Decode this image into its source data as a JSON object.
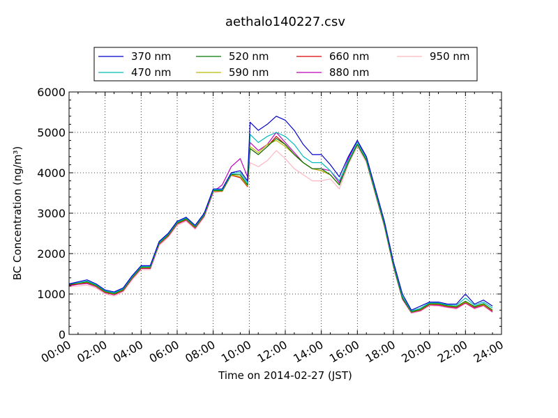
{
  "chart_data": {
    "type": "line",
    "title": "aethalo140227.csv",
    "xlabel": "Time on 2014-02-27 (JST)",
    "ylabel": "BC Concentration (ng/m³)",
    "xlim": [
      0,
      24
    ],
    "ylim": [
      0,
      6000
    ],
    "x_ticks": [
      "00:00",
      "02:00",
      "04:00",
      "06:00",
      "08:00",
      "10:00",
      "12:00",
      "14:00",
      "16:00",
      "18:00",
      "20:00",
      "22:00",
      "24:00"
    ],
    "y_ticks": [
      "0",
      "1000",
      "2000",
      "3000",
      "4000",
      "5000",
      "6000"
    ],
    "grid": true,
    "legend_position": "top",
    "x_unit": "hours",
    "x": [
      0,
      0.5,
      1,
      1.5,
      2,
      2.5,
      3,
      3.5,
      4,
      4.5,
      5,
      5.5,
      6,
      6.5,
      7,
      7.5,
      8,
      8.5,
      9,
      9.5,
      9.9,
      10.05,
      10.5,
      11,
      11.5,
      12,
      12.5,
      13,
      13.5,
      14,
      14.5,
      15,
      15.5,
      16,
      16.5,
      17,
      17.5,
      18,
      18.5,
      19,
      19.5,
      20,
      20.5,
      21,
      21.5,
      22,
      22.5,
      23,
      23.5
    ],
    "series": [
      {
        "name": "370 nm",
        "color": "#0000cc",
        "values": [
          1250,
          1300,
          1350,
          1250,
          1100,
          1050,
          1150,
          1450,
          1700,
          1700,
          2300,
          2500,
          2800,
          2900,
          2700,
          3000,
          3600,
          3600,
          4000,
          4050,
          3800,
          5250,
          5050,
          5200,
          5400,
          5300,
          5050,
          4700,
          4450,
          4450,
          4200,
          3900,
          4400,
          4800,
          4400,
          3600,
          2800,
          1800,
          1000,
          600,
          700,
          800,
          800,
          750,
          750,
          1000,
          750,
          850,
          700
        ]
      },
      {
        "name": "470 nm",
        "color": "#00bbbb",
        "values": [
          1250,
          1280,
          1320,
          1230,
          1080,
          1030,
          1130,
          1430,
          1680,
          1680,
          2280,
          2480,
          2780,
          2880,
          2680,
          2980,
          3580,
          3580,
          3980,
          4000,
          3750,
          4950,
          4750,
          4900,
          5000,
          4900,
          4700,
          4400,
          4250,
          4250,
          4050,
          3800,
          4300,
          4750,
          4350,
          3550,
          2750,
          1750,
          950,
          580,
          650,
          780,
          780,
          730,
          720,
          900,
          720,
          800,
          650
        ]
      },
      {
        "name": "520 nm",
        "color": "#007700",
        "values": [
          1230,
          1270,
          1300,
          1210,
          1060,
          1010,
          1110,
          1410,
          1660,
          1660,
          2260,
          2460,
          2760,
          2860,
          2660,
          2960,
          3560,
          3560,
          3960,
          3950,
          3700,
          4600,
          4450,
          4650,
          4850,
          4700,
          4450,
          4250,
          4100,
          4100,
          3950,
          3700,
          4250,
          4700,
          4300,
          3500,
          2700,
          1700,
          900,
          560,
          620,
          760,
          760,
          710,
          690,
          820,
          690,
          760,
          600
        ]
      },
      {
        "name": "590 nm",
        "color": "#bbbb00",
        "values": [
          1240,
          1260,
          1290,
          1200,
          1050,
          1000,
          1100,
          1400,
          1650,
          1650,
          2250,
          2450,
          2750,
          2850,
          2650,
          2950,
          3550,
          3550,
          3950,
          3900,
          3680,
          4650,
          4500,
          4700,
          4800,
          4650,
          4450,
          4250,
          4100,
          4050,
          3950,
          3700,
          4250,
          4700,
          4300,
          3500,
          2700,
          1700,
          900,
          550,
          610,
          750,
          750,
          700,
          680,
          800,
          680,
          740,
          590
        ]
      },
      {
        "name": "660 nm",
        "color": "#dd0000",
        "values": [
          1220,
          1250,
          1280,
          1190,
          1040,
          990,
          1090,
          1390,
          1640,
          1640,
          2240,
          2440,
          2740,
          2840,
          2640,
          2940,
          3540,
          3540,
          3940,
          3880,
          3660,
          4600,
          4450,
          4650,
          4900,
          4700,
          4450,
          4250,
          4100,
          4050,
          3950,
          3700,
          4250,
          4700,
          4300,
          3500,
          2700,
          1700,
          900,
          550,
          600,
          740,
          740,
          690,
          670,
          790,
          670,
          730,
          580
        ]
      },
      {
        "name": "880 nm",
        "color": "#bb00bb",
        "values": [
          1200,
          1240,
          1260,
          1180,
          1030,
          980,
          1080,
          1380,
          1630,
          1630,
          2230,
          2430,
          2730,
          2830,
          2630,
          2930,
          3530,
          3700,
          4150,
          4350,
          3900,
          4750,
          4550,
          4700,
          5000,
          4750,
          4500,
          4250,
          4100,
          4100,
          4050,
          3750,
          4350,
          4800,
          4350,
          3500,
          2700,
          1700,
          880,
          540,
          590,
          730,
          720,
          680,
          650,
          780,
          650,
          720,
          560
        ]
      },
      {
        "name": "950 nm",
        "color": "#ffb6c1",
        "values": [
          1180,
          1200,
          1220,
          1150,
          1000,
          950,
          1050,
          1350,
          1600,
          1600,
          2200,
          2400,
          2700,
          2800,
          2600,
          2900,
          3500,
          3550,
          3950,
          3950,
          3650,
          4250,
          4150,
          4300,
          4550,
          4350,
          4100,
          3950,
          3800,
          3800,
          3850,
          3600,
          4200,
          4650,
          4250,
          3450,
          2650,
          1650,
          860,
          520,
          570,
          710,
          700,
          660,
          630,
          760,
          630,
          700,
          540
        ]
      }
    ]
  }
}
